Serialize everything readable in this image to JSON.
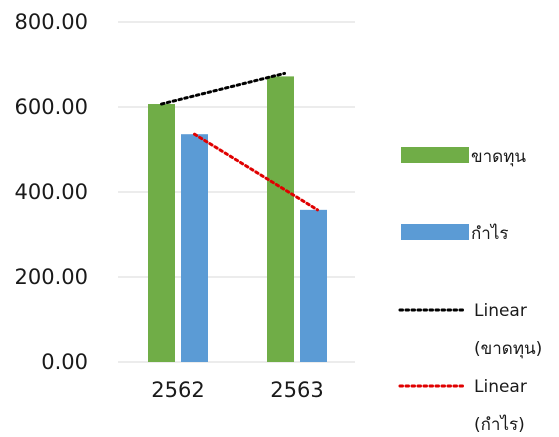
{
  "chart_data": {
    "type": "bar",
    "categories": [
      "2562",
      "2563"
    ],
    "series": [
      {
        "name": "ขาดทุน",
        "values": [
          607,
          672
        ],
        "color": "#70AD47"
      },
      {
        "name": "กำไร",
        "values": [
          536,
          358
        ],
        "color": "#5B9BD5"
      }
    ],
    "trendlines": [
      {
        "name": "Linear (ขาดทุน)",
        "name_lines": [
          "Linear",
          "(ขาดทุน)"
        ],
        "series": "ขาดทุน",
        "color": "#000000",
        "style": "dotted"
      },
      {
        "name": "Linear (กำไร)",
        "name_lines": [
          "Linear",
          "(กำไร)"
        ],
        "series": "กำไร",
        "color": "#E00000",
        "style": "dotted"
      }
    ],
    "yticks": [
      "0.00",
      "200.00",
      "400.00",
      "600.00",
      "800.00"
    ],
    "ylim": [
      0,
      800
    ],
    "grid": true,
    "legend_position": "right"
  }
}
